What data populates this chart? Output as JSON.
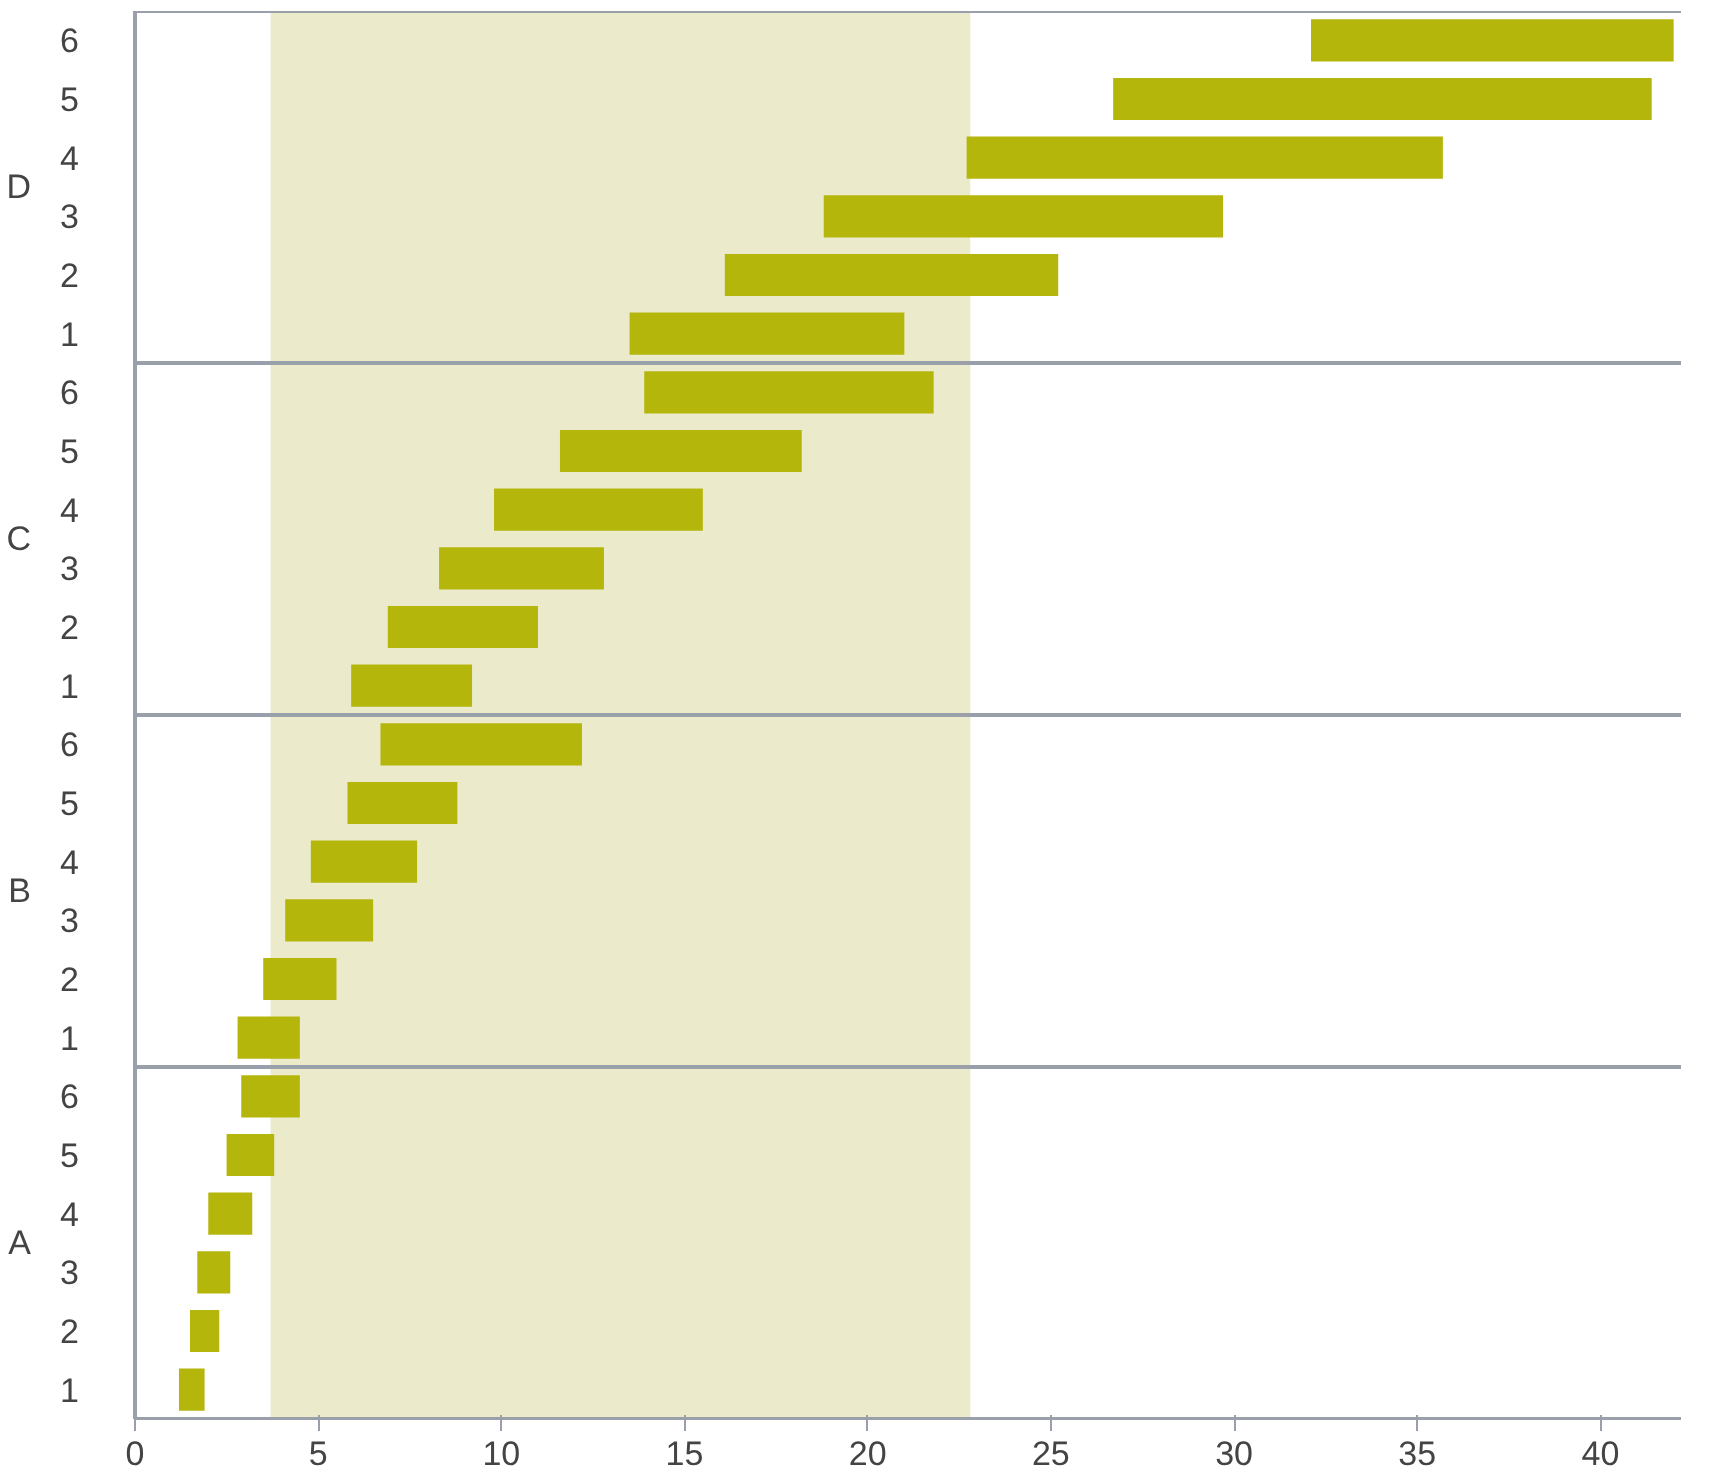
{
  "chart_data": {
    "type": "bar",
    "orientation": "horizontal",
    "categories": [
      "6",
      "5",
      "4",
      "3",
      "2",
      "1",
      "6",
      "5",
      "4",
      "3",
      "2",
      "1",
      "6",
      "5",
      "4",
      "3",
      "2",
      "1",
      "6",
      "5",
      "4",
      "3",
      "2",
      "1"
    ],
    "base": [
      32.1,
      26.7,
      22.7,
      18.8,
      16.1,
      13.5,
      13.9,
      11.6,
      9.8,
      8.3,
      6.9,
      5.9,
      6.7,
      5.8,
      4.8,
      4.1,
      3.5,
      2.8,
      2.9,
      2.5,
      2.0,
      1.7,
      1.5,
      1.2
    ],
    "values": [
      9.9,
      14.7,
      13.0,
      10.9,
      9.1,
      7.5,
      7.9,
      6.6,
      5.7,
      4.5,
      4.1,
      3.3,
      5.5,
      3.0,
      2.9,
      2.4,
      2.0,
      1.7,
      1.6,
      1.3,
      1.2,
      0.9,
      0.8,
      0.7
    ],
    "color": "#b5b60c",
    "annotations": [
      "D",
      "C",
      "B",
      "A"
    ],
    "bands": [
      {
        "axis": "x",
        "from": 3.7,
        "to": 22.8,
        "color": "#ebebcc"
      }
    ],
    "xlim": [
      0,
      42.2
    ],
    "xticks": [
      0,
      5,
      10,
      15,
      20,
      25,
      30,
      35,
      40
    ],
    "grid": false
  }
}
